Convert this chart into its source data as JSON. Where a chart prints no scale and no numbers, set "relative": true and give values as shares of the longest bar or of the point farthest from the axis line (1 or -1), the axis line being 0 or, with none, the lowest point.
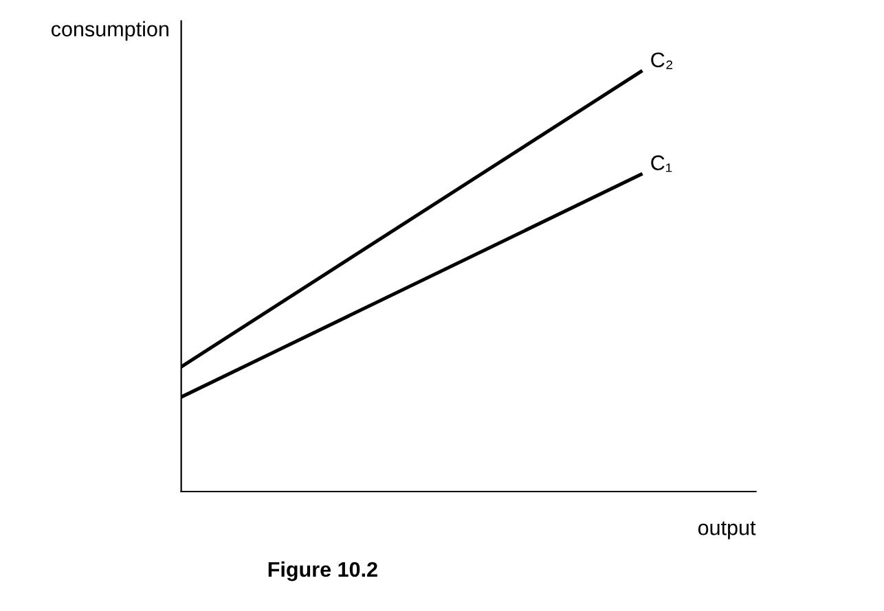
{
  "chart_data": {
    "type": "line",
    "relative": true,
    "xlabel": "output",
    "ylabel": "consumption",
    "categories": [
      null,
      null
    ],
    "series": [
      {
        "name": "C₂",
        "color": "#000000",
        "values": [
          0.297,
          1.0
        ]
      },
      {
        "name": "C₁",
        "color": "#000000",
        "values": [
          0.225,
          0.755
        ]
      }
    ],
    "grid": false,
    "legend": false,
    "annotations": [
      "Figure 10.2"
    ]
  }
}
